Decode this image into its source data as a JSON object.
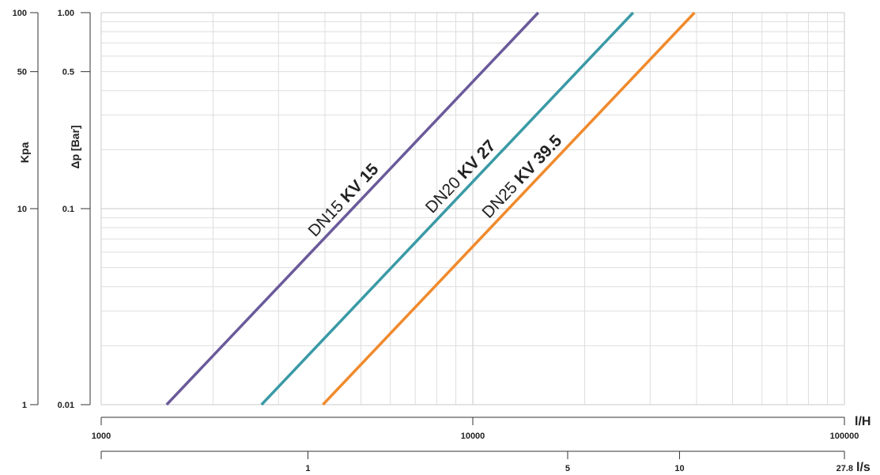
{
  "chart_data": {
    "type": "line",
    "x_scale": "log",
    "y_scale": "log",
    "grid": true,
    "xlim": [
      1000,
      100000
    ],
    "ylim": [
      0.01,
      1.0
    ],
    "x_unit": "l/H",
    "x_ticks": [
      {
        "value": 1000,
        "label": "1000"
      },
      {
        "value": 10000,
        "label": "10000"
      },
      {
        "value": 100000,
        "label": "100000"
      }
    ],
    "x2_unit": "l/s",
    "x2_ticks": [
      {
        "value": 3600,
        "label": "1"
      },
      {
        "value": 18000,
        "label": "5"
      },
      {
        "value": 36000,
        "label": "10"
      },
      {
        "value": 100000,
        "label": "27.8"
      }
    ],
    "y_label": "Δp [Bar]",
    "y_ticks": [
      {
        "value": 0.01,
        "label": "0.01"
      },
      {
        "value": 0.1,
        "label": "0.1"
      },
      {
        "value": 0.5,
        "label": "0.5"
      },
      {
        "value": 1.0,
        "label": "1.00"
      }
    ],
    "y2_label": "Kpa",
    "y2_ticks": [
      {
        "value": 0.01,
        "label": "1"
      },
      {
        "value": 0.1,
        "label": "10"
      },
      {
        "value": 0.5,
        "label": "50"
      },
      {
        "value": 1.0,
        "label": "100"
      }
    ],
    "series": [
      {
        "name": "DN15",
        "kv_label": "KV 15",
        "kv": 15,
        "color": "#6a5a9a",
        "points": [
          [
            1500,
            0.01
          ],
          [
            15000,
            1.0
          ]
        ]
      },
      {
        "name": "DN20",
        "kv_label": "KV 27",
        "kv": 27,
        "color": "#3a9aa6",
        "points": [
          [
            2700,
            0.01
          ],
          [
            27000,
            1.0
          ]
        ]
      },
      {
        "name": "DN25",
        "kv_label": "KV 39.5",
        "kv": 39.5,
        "color": "#f08a2c",
        "points": [
          [
            3950,
            0.01
          ],
          [
            39500,
            1.0
          ]
        ]
      }
    ]
  }
}
